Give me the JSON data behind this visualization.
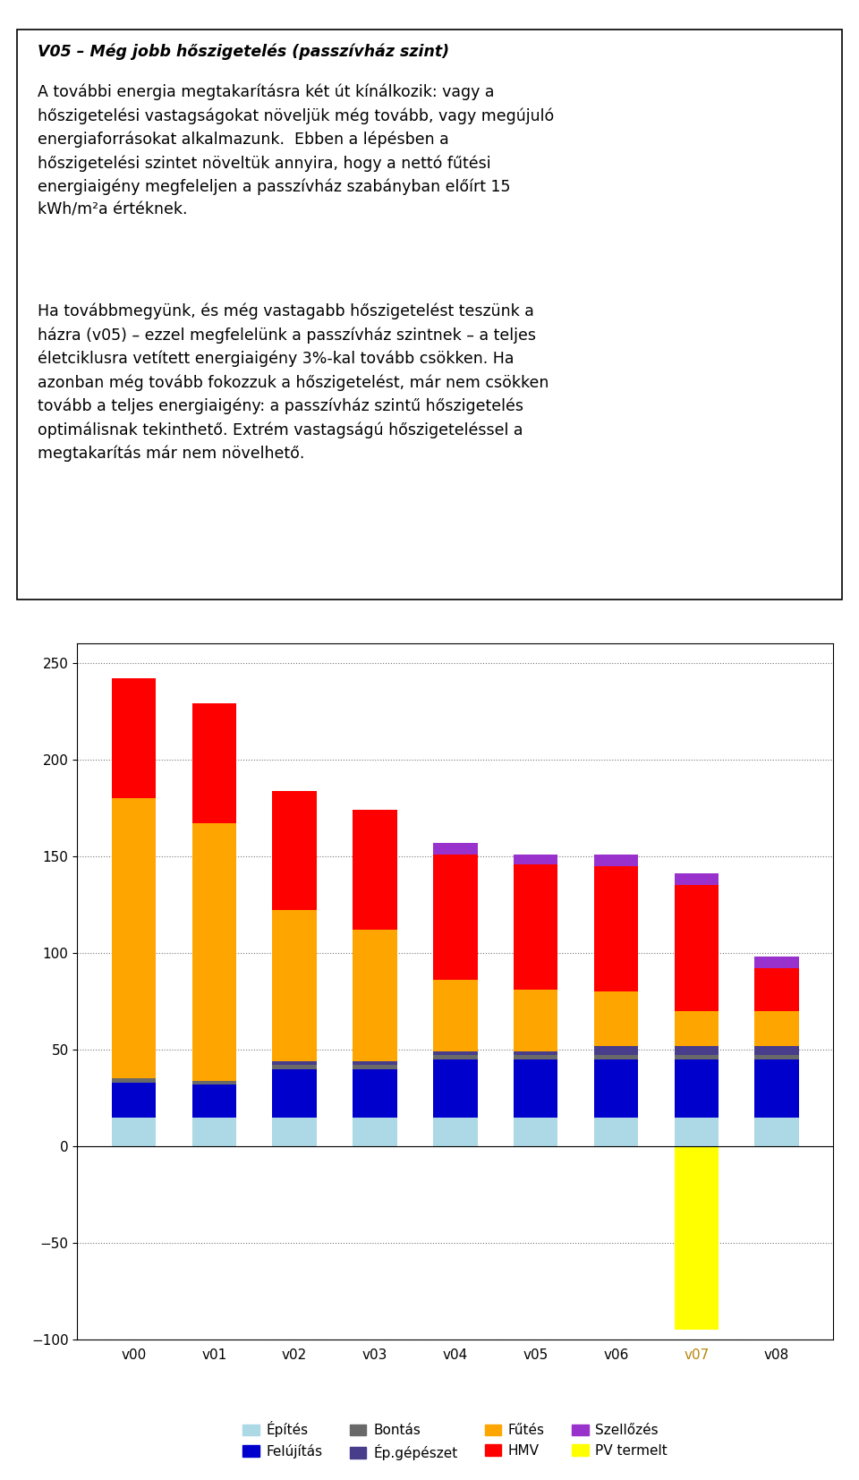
{
  "categories": [
    "v00",
    "v01",
    "v02",
    "v03",
    "v04",
    "v05",
    "v06",
    "v07",
    "v08"
  ],
  "series": {
    "Építés": [
      15,
      15,
      15,
      15,
      15,
      15,
      15,
      15,
      15
    ],
    "Felújítás": [
      18,
      17,
      25,
      25,
      30,
      30,
      30,
      30,
      30
    ],
    "Bontás": [
      2,
      2,
      2,
      2,
      2,
      2,
      2,
      2,
      2
    ],
    "Ép.gépészet": [
      0,
      0,
      2,
      2,
      2,
      2,
      5,
      5,
      5
    ],
    "Fűtés": [
      145,
      133,
      78,
      68,
      37,
      32,
      28,
      18,
      18
    ],
    "HMV": [
      62,
      62,
      62,
      62,
      65,
      65,
      65,
      65,
      22
    ],
    "Szellőzés": [
      0,
      0,
      0,
      0,
      6,
      5,
      6,
      6,
      6
    ],
    "PV termelt": [
      0,
      0,
      0,
      0,
      0,
      0,
      0,
      -95,
      0
    ]
  },
  "colors": {
    "Építés": "#add8e6",
    "Felújítás": "#0000cd",
    "Bontás": "#696969",
    "Ép.gépészet": "#483d8b",
    "Fűtés": "#ffa500",
    "HMV": "#ff0000",
    "Szellőzés": "#9932cc",
    "PV termelt": "#ffff00"
  },
  "ylim": [
    -100,
    260
  ],
  "yticks": [
    -100,
    -50,
    0,
    50,
    100,
    150,
    200,
    250
  ],
  "v07_label_color": "#b8860b",
  "legend_order": [
    "Építés",
    "Felújítás",
    "Bontás",
    "Ép.gépészet",
    "Fűtés",
    "HMV",
    "Szellőzés",
    "PV termelt"
  ]
}
